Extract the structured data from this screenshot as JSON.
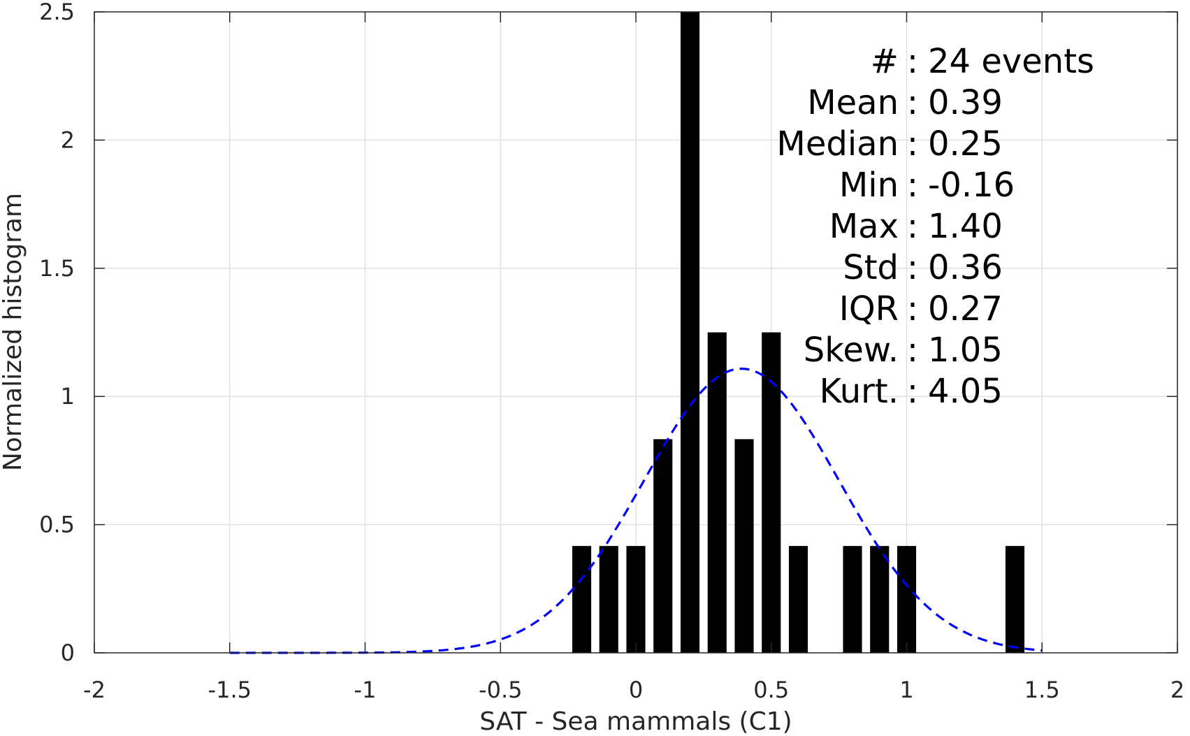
{
  "chart_data": {
    "type": "bar",
    "title": "",
    "xlabel": "SAT - Sea mammals (C1)",
    "ylabel": "Normalized histogram",
    "xlim": [
      -2,
      2
    ],
    "ylim": [
      0,
      2.5
    ],
    "xticks": [
      -2,
      -1.5,
      -1,
      -0.5,
      0,
      0.5,
      1,
      1.5,
      2
    ],
    "xtick_labels": [
      "-2",
      "-1.5",
      "-1",
      "-0.5",
      "0",
      "0.5",
      "1",
      "1.5",
      "2"
    ],
    "yticks": [
      0,
      0.5,
      1,
      1.5,
      2,
      2.5
    ],
    "ytick_labels": [
      "0",
      "0.5",
      "1",
      "1.5",
      "2",
      "2.5"
    ],
    "grid": true,
    "bar_width": 0.07,
    "bar_color": "#000000",
    "bins": [
      {
        "x": -0.2,
        "y": 0.4167
      },
      {
        "x": -0.1,
        "y": 0.4167
      },
      {
        "x": 0.0,
        "y": 0.4167
      },
      {
        "x": 0.1,
        "y": 0.8333
      },
      {
        "x": 0.2,
        "y": 2.5
      },
      {
        "x": 0.3,
        "y": 1.25
      },
      {
        "x": 0.4,
        "y": 0.8333
      },
      {
        "x": 0.5,
        "y": 1.25
      },
      {
        "x": 0.6,
        "y": 0.4167
      },
      {
        "x": 0.8,
        "y": 0.4167
      },
      {
        "x": 0.9,
        "y": 0.4167
      },
      {
        "x": 1.0,
        "y": 0.4167
      },
      {
        "x": 1.4,
        "y": 0.4167
      }
    ],
    "fit_curve": {
      "style": "dashed",
      "color": "#0000ff",
      "x_range": [
        -1.5,
        1.5
      ],
      "mean": 0.39,
      "std": 0.36
    },
    "stats": [
      {
        "label": "#",
        "sep": ":",
        "value": "24 events"
      },
      {
        "label": "Mean",
        "sep": ":",
        "value": "0.39"
      },
      {
        "label": "Median",
        "sep": ":",
        "value": "0.25"
      },
      {
        "label": "Min",
        "sep": ":",
        "value": "-0.16"
      },
      {
        "label": "Max",
        "sep": ":",
        "value": "1.40"
      },
      {
        "label": "Std",
        "sep": ":",
        "value": "0.36"
      },
      {
        "label": "IQR",
        "sep": ":",
        "value": "0.27"
      },
      {
        "label": "Skew.",
        "sep": ":",
        "value": "1.05"
      },
      {
        "label": "Kurt.",
        "sep": ":",
        "value": "4.05"
      }
    ]
  }
}
